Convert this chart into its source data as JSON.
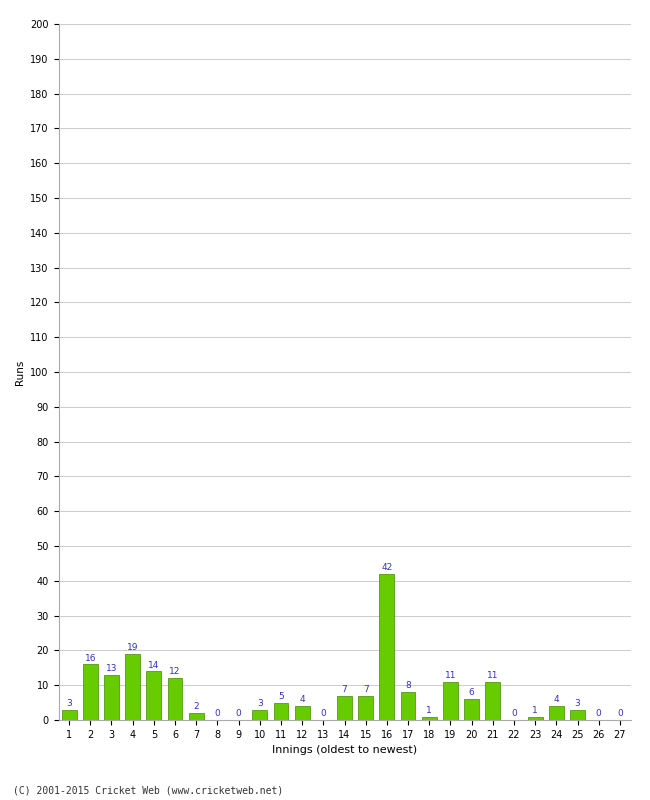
{
  "xlabel": "Innings (oldest to newest)",
  "ylabel": "Runs",
  "values": [
    3,
    16,
    13,
    19,
    14,
    12,
    2,
    0,
    0,
    3,
    5,
    4,
    0,
    7,
    7,
    42,
    8,
    1,
    11,
    6,
    11,
    0,
    1,
    4,
    3,
    0,
    0
  ],
  "categories": [
    "1",
    "2",
    "3",
    "4",
    "5",
    "6",
    "7",
    "8",
    "9",
    "10",
    "11",
    "12",
    "13",
    "14",
    "15",
    "16",
    "17",
    "18",
    "19",
    "20",
    "21",
    "22",
    "23",
    "24",
    "25",
    "26",
    "27"
  ],
  "bar_color": "#66cc00",
  "bar_edge_color": "#448800",
  "label_color": "#3333bb",
  "label_fontsize": 6.5,
  "ylabel_fontsize": 7.5,
  "xlabel_fontsize": 8,
  "tick_fontsize": 7,
  "ylim": [
    0,
    200
  ],
  "yticks": [
    0,
    10,
    20,
    30,
    40,
    50,
    60,
    70,
    80,
    90,
    100,
    110,
    120,
    130,
    140,
    150,
    160,
    170,
    180,
    190,
    200
  ],
  "background_color": "#ffffff",
  "grid_color": "#cccccc",
  "footer": "(C) 2001-2015 Cricket Web (www.cricketweb.net)"
}
